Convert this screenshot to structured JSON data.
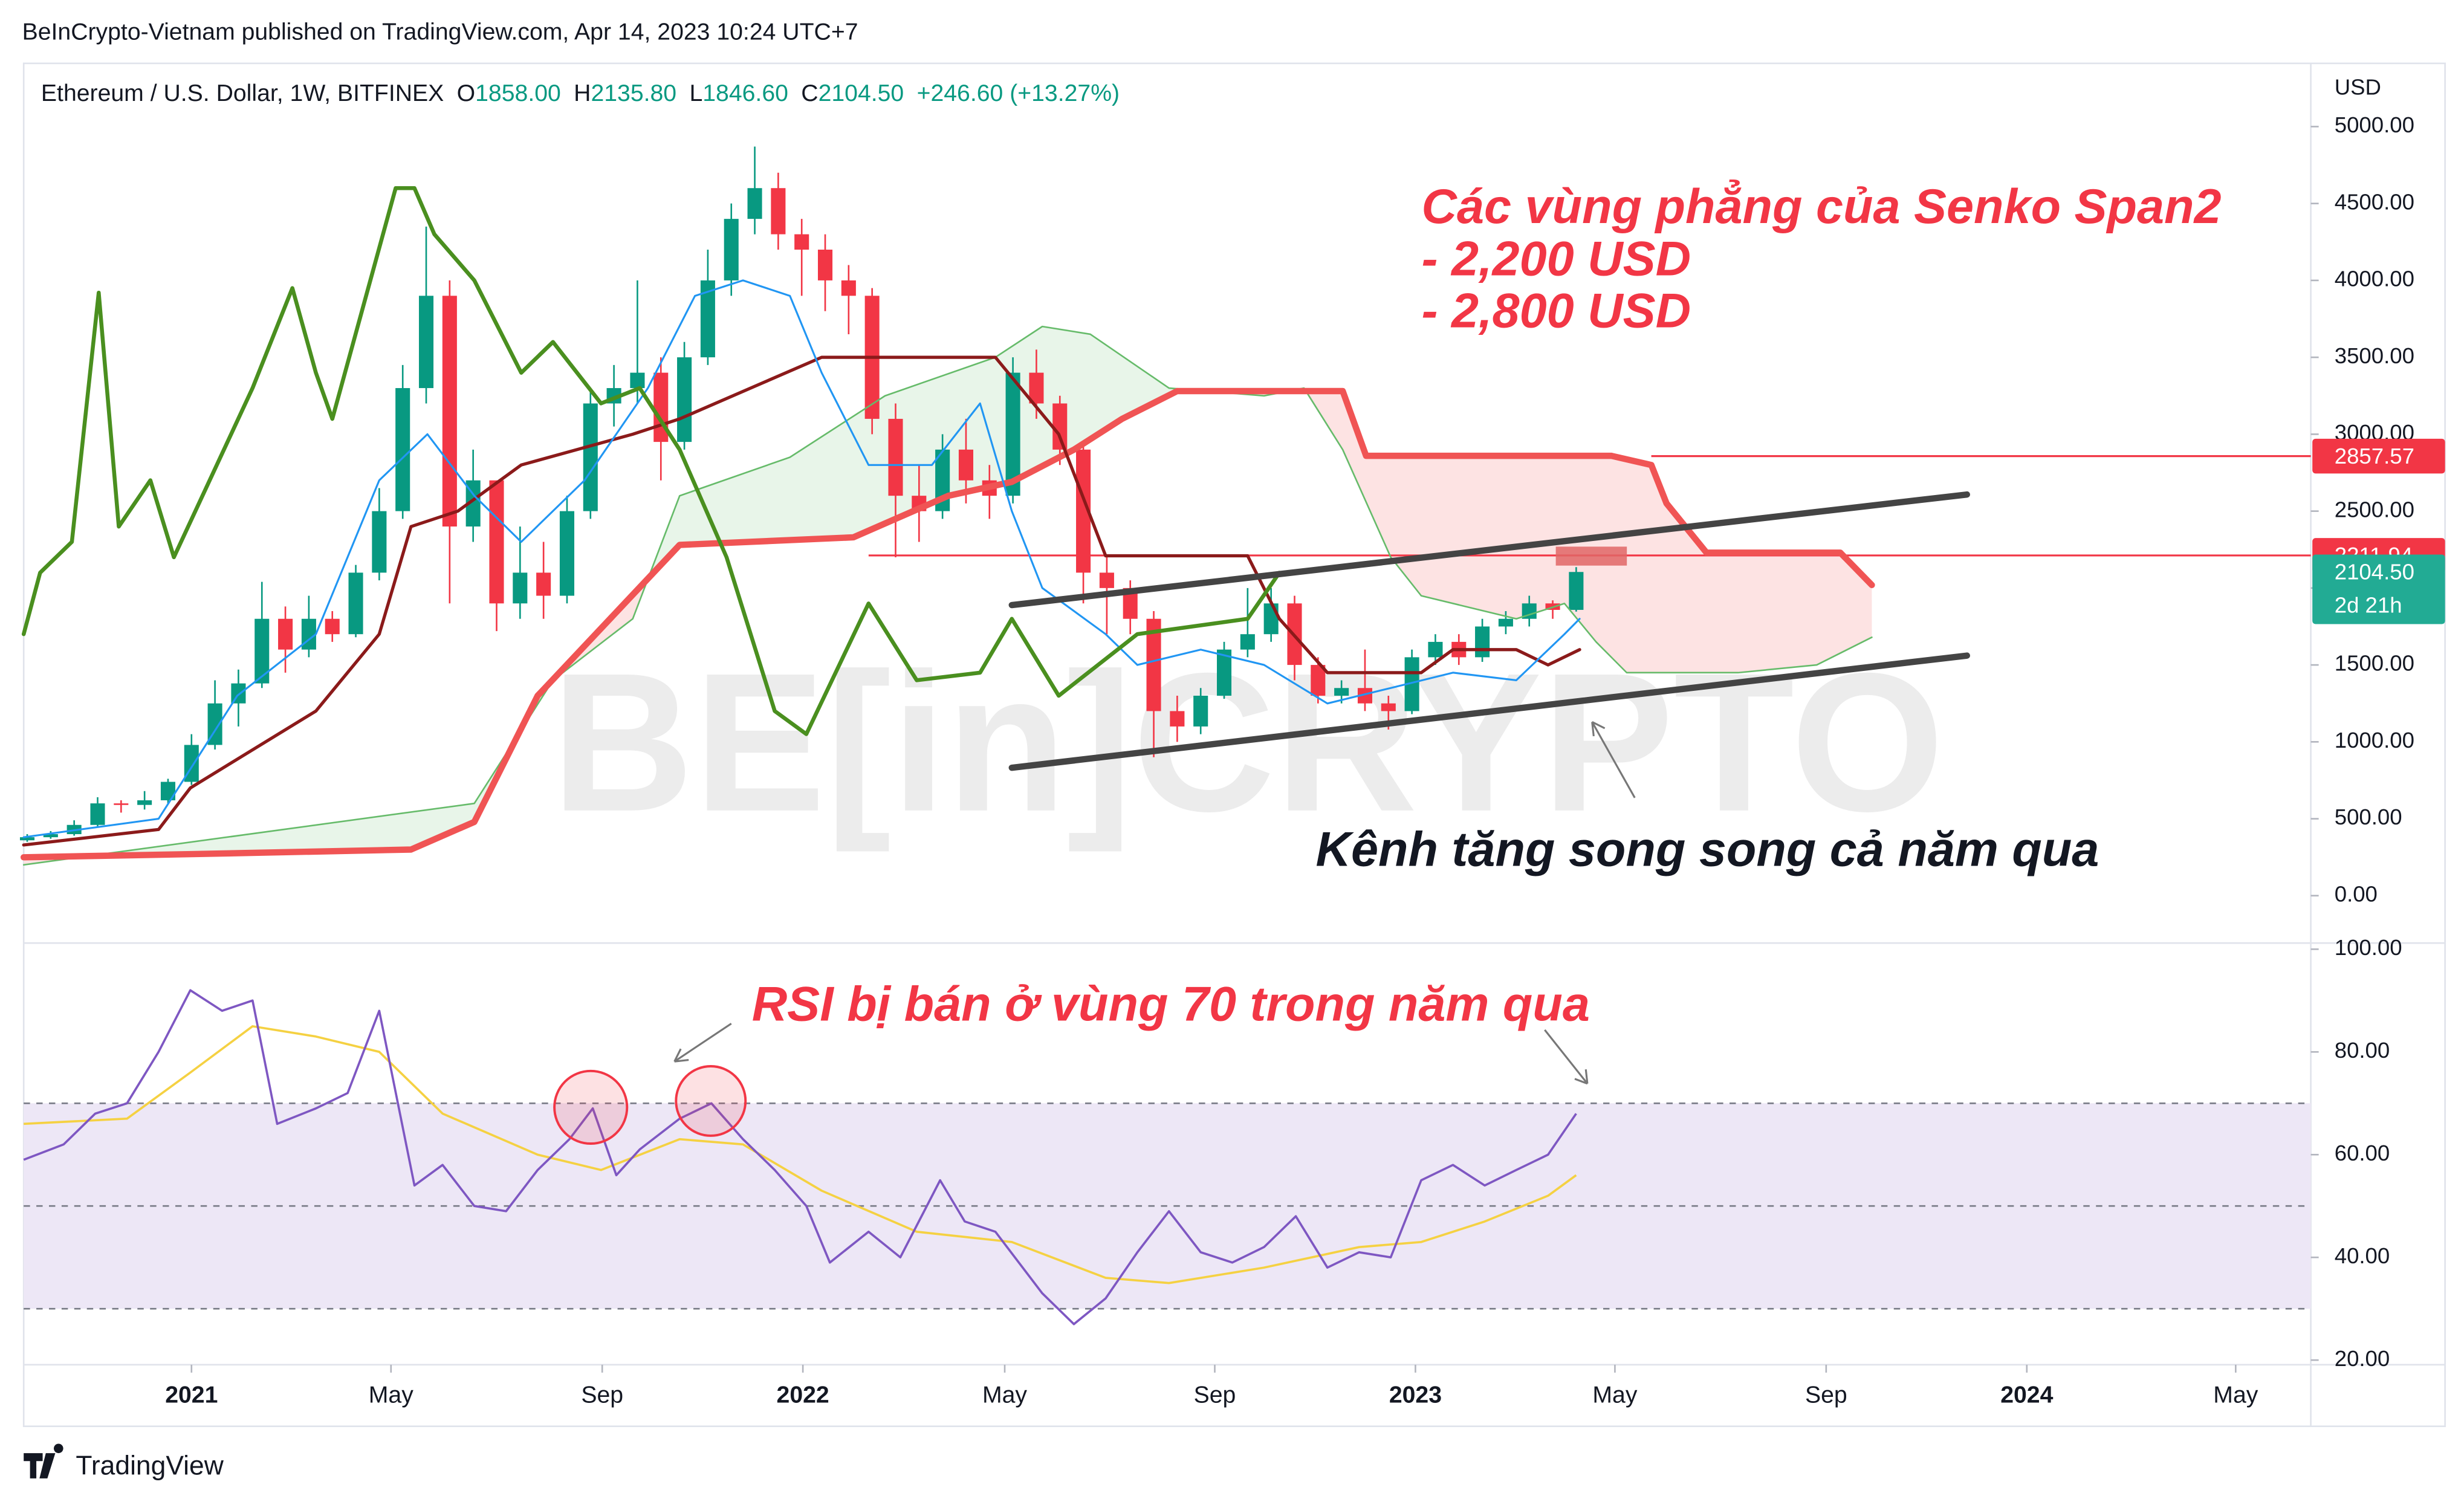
{
  "header": {
    "published": "BeInCrypto-Vietnam published on TradingView.com, Apr 14, 2023 10:24 UTC+7"
  },
  "footer": {
    "brand": "TradingView"
  },
  "chart_data": [
    {
      "type": "candlestick",
      "title": "Ethereum / U.S. Dollar, 1W, BITFINEX",
      "ohlc": [
        {
          "key": "O",
          "text": "1858.00"
        },
        {
          "key": "H",
          "text": "2135.80"
        },
        {
          "key": "L",
          "text": "1846.60"
        },
        {
          "key": "C",
          "text": "2104.50"
        }
      ],
      "change": "+246.60 (+13.27%)",
      "axis_unit": "USD",
      "watermark": "BE[in]CRYPTO",
      "annotations": {
        "senko": [
          "Các vùng phẳng của Senko Span2",
          "- 2,200 USD",
          "- 2,800 USD"
        ],
        "channel": "Kênh tăng song song cả năm qua"
      },
      "xlim": [
        -14.3,
        180.6
      ],
      "ylim": [
        -308,
        5411
      ],
      "yticks": [
        {
          "value": 0,
          "label": "0.00"
        },
        {
          "value": 500,
          "label": "500.00"
        },
        {
          "value": 1000,
          "label": "1000.00"
        },
        {
          "value": 1500,
          "label": "1500.00"
        },
        {
          "value": 2000,
          "label": "2000.00"
        },
        {
          "value": 2500,
          "label": "2500.00"
        },
        {
          "value": 3000,
          "label": "3000.00"
        },
        {
          "value": 3500,
          "label": "3500.00"
        },
        {
          "value": 4000,
          "label": "4000.00"
        },
        {
          "value": 4500,
          "label": "4500.00"
        },
        {
          "value": 5000,
          "label": "5000.00"
        }
      ],
      "grid": false,
      "up_color": "#089981",
      "down_color": "#f23645",
      "cloud_colors": [
        "#e8f5e9",
        "#fde3e3"
      ],
      "candles": {
        "x": [
          -14,
          -12,
          -10,
          -8,
          -6,
          -4,
          -2,
          0,
          2,
          4,
          6,
          8,
          10,
          12,
          14,
          16,
          18,
          20,
          22,
          24,
          26,
          28,
          30,
          32,
          34,
          36,
          38,
          40,
          42,
          44,
          46,
          48,
          50,
          52,
          54,
          56,
          58,
          60,
          62,
          64,
          66,
          68,
          70,
          72,
          74,
          76,
          78,
          80,
          82,
          84,
          86,
          88,
          90,
          92,
          94,
          96,
          98,
          100,
          102,
          104,
          106,
          108,
          110,
          112,
          114,
          116,
          118
        ],
        "open": [
          360,
          380,
          400,
          460,
          600,
          590,
          620,
          740,
          980,
          1250,
          1380,
          1800,
          1600,
          1800,
          1700,
          2100,
          2500,
          3300,
          3900,
          2400,
          2700,
          1900,
          2100,
          1950,
          2500,
          3200,
          3300,
          3400,
          2950,
          3500,
          4000,
          4400,
          4600,
          4300,
          4200,
          4000,
          3900,
          3100,
          2600,
          2500,
          2900,
          2700,
          2600,
          3400,
          3200,
          2900,
          2100,
          2000,
          1800,
          1200,
          1100,
          1300,
          1600,
          1700,
          1900,
          1500,
          1300,
          1350,
          1250,
          1200,
          1550,
          1650,
          1550,
          1750,
          1800,
          1900,
          1858
        ],
        "high": [
          400,
          420,
          490,
          640,
          620,
          680,
          760,
          1050,
          1400,
          1470,
          2040,
          1880,
          1950,
          1850,
          2150,
          2650,
          3450,
          4350,
          4000,
          2900,
          2700,
          2400,
          2300,
          2600,
          3300,
          3450,
          4000,
          3500,
          3600,
          4200,
          4500,
          4870,
          4700,
          4400,
          4300,
          4100,
          3950,
          3200,
          2800,
          3000,
          3100,
          2800,
          3500,
          3550,
          3250,
          2950,
          2200,
          2050,
          1850,
          1300,
          1350,
          1650,
          2000,
          2000,
          1950,
          1550,
          1400,
          1600,
          1300,
          1600,
          1700,
          1700,
          1800,
          1850,
          1950,
          1920,
          2135.8
        ],
        "low": [
          350,
          370,
          390,
          450,
          540,
          560,
          600,
          720,
          950,
          1100,
          1350,
          1450,
          1550,
          1650,
          1680,
          2050,
          2450,
          3200,
          1900,
          2300,
          1720,
          1800,
          1800,
          1900,
          2450,
          3050,
          3200,
          2700,
          2900,
          3450,
          3900,
          4300,
          4200,
          3900,
          3800,
          3650,
          3000,
          2200,
          2300,
          2450,
          2550,
          2450,
          2550,
          3100,
          2800,
          1900,
          1700,
          1700,
          900,
          1000,
          1050,
          1280,
          1550,
          1650,
          1400,
          1250,
          1250,
          1200,
          1080,
          1180,
          1500,
          1500,
          1520,
          1700,
          1750,
          1800,
          1846.6
        ],
        "close": [
          380,
          400,
          460,
          600,
          590,
          620,
          740,
          980,
          1250,
          1380,
          1800,
          1600,
          1800,
          1700,
          2100,
          2500,
          3300,
          3900,
          2400,
          2700,
          1900,
          2100,
          1950,
          2500,
          3200,
          3300,
          3400,
          2950,
          3500,
          4000,
          4400,
          4600,
          4300,
          4200,
          4000,
          3900,
          3100,
          2600,
          2500,
          2900,
          2700,
          2600,
          3400,
          3200,
          2900,
          2100,
          2000,
          1800,
          1200,
          1100,
          1300,
          1600,
          1700,
          1900,
          1500,
          1300,
          1350,
          1250,
          1200,
          1550,
          1650,
          1550,
          1750,
          1800,
          1900,
          1858,
          2104.5
        ]
      },
      "series": [
        {
          "color": "#66bb6a",
          "width": 1,
          "x": [
            -14.3,
            24.1,
            30.8,
            37.6,
            41.6,
            51,
            59.1,
            68.5,
            72.5,
            76.6,
            83.3,
            91.4,
            94.8,
            98.1,
            102.2,
            104.8,
            112.9,
            117,
            119.7,
            122.3,
            131.8,
            138.5,
            143.2
          ],
          "values": [
            200,
            600,
            1400,
            1800,
            2600,
            2850,
            3250,
            3500,
            3700,
            3650,
            3300,
            3250,
            3300,
            2900,
            2200,
            1950,
            1800,
            1900,
            1650,
            1450,
            1450,
            1500,
            1680
          ]
        },
        {
          "color": "#f05454",
          "width": 4,
          "x": [
            -14.3,
            0,
            18.7,
            24.1,
            29.5,
            41.6,
            56.4,
            64.5,
            69.9,
            75.2,
            79.3,
            84,
            98.1,
            100.1,
            121,
            124.4,
            125.7,
            129.1,
            140.5,
            143.2
          ],
          "values": [
            250,
            270,
            300,
            480,
            1300,
            2280,
            2330,
            2600,
            2690,
            2900,
            3100,
            3280,
            3280,
            2860,
            2860,
            2800,
            2550,
            2230,
            2230,
            2020
          ]
        },
        {
          "color": "#8b1a1a",
          "width": 2,
          "x": [
            -14.3,
            -2.8,
            -0.1,
            10.6,
            16,
            18.7,
            22.7,
            28.1,
            37.6,
            41.6,
            53.7,
            68.5,
            73.9,
            77.9,
            90,
            92.7,
            96.8,
            104.8,
            107.5,
            112.9,
            115.6,
            118.3
          ],
          "values": [
            330,
            430,
            700,
            1200,
            1700,
            2400,
            2500,
            2800,
            3000,
            3100,
            3500,
            3500,
            3000,
            2210,
            2210,
            1800,
            1450,
            1450,
            1600,
            1600,
            1500,
            1600
          ]
        },
        {
          "color": "#2196f3",
          "width": 1.2,
          "x": [
            -14.3,
            -2.8,
            3.9,
            10.6,
            16,
            20.1,
            24.1,
            28.1,
            33.5,
            38.9,
            42.9,
            47,
            51,
            53.7,
            57.7,
            63.1,
            67.2,
            69.9,
            72.5,
            77.9,
            80.6,
            86,
            91.4,
            96.8,
            102.2,
            107.5,
            112.9,
            117,
            118.3
          ],
          "values": [
            380,
            500,
            1300,
            1700,
            2700,
            3000,
            2600,
            2300,
            2700,
            3300,
            3900,
            4000,
            3900,
            3400,
            2800,
            2800,
            3200,
            2500,
            2000,
            1700,
            1500,
            1600,
            1500,
            1250,
            1350,
            1450,
            1400,
            1700,
            1800
          ]
        },
        {
          "color": "#4a8f1f",
          "width": 2.5,
          "x": [
            -14.3,
            -12.9,
            -10.2,
            -7.9,
            -6.2,
            -3.5,
            -1.5,
            5.2,
            8.6,
            10.6,
            12,
            17.4,
            19,
            20.7,
            24.1,
            28.1,
            30.8,
            34.9,
            38.2,
            41.6,
            45.6,
            49.7,
            52.4,
            57.7,
            61.8,
            67.2,
            69.9,
            73.9,
            80.6,
            90,
            92.7
          ],
          "values": [
            1700,
            2100,
            2300,
            3920,
            2400,
            2700,
            2200,
            3300,
            3950,
            3400,
            3100,
            4600,
            4600,
            4300,
            4000,
            3400,
            3600,
            3200,
            3300,
            2900,
            2200,
            1200,
            1050,
            1900,
            1400,
            1450,
            1800,
            1300,
            1700,
            1800,
            2100
          ]
        },
        {
          "color": "#444444",
          "width": 4,
          "x": [
            69.9,
            151.3
          ],
          "values": [
            1889,
            2608
          ]
        },
        {
          "color": "#444444",
          "width": 4,
          "x": [
            69.9,
            151.3
          ],
          "values": [
            832,
            1561
          ]
        }
      ],
      "levels": [
        {
          "value": 2857.57,
          "color": "#f23645",
          "x_start": 124.4
        },
        {
          "value": 2211.94,
          "color": "#f23645",
          "x_start": 57.7
        }
      ],
      "last_price": {
        "value": 2104.5,
        "label": "2104.50"
      },
      "countdown": "2d 21h",
      "last_color": "#22ab94"
    },
    {
      "type": "line",
      "annotation": "RSI bị bán ở vùng 70 trong năm qua",
      "xlim": [
        -14.3,
        180.6
      ],
      "ylim": [
        19.1,
        101.2
      ],
      "yticks": [
        {
          "value": 20,
          "label": "20.00"
        },
        {
          "value": 40,
          "label": "40.00"
        },
        {
          "value": 60,
          "label": "60.00"
        },
        {
          "value": 80,
          "label": "80.00"
        },
        {
          "value": 100,
          "label": "100.00"
        }
      ],
      "xticks": [
        {
          "value": 0,
          "label": "2021"
        },
        {
          "value": 17,
          "label": "May"
        },
        {
          "value": 35,
          "label": "Sep"
        },
        {
          "value": 52.1,
          "label": "2022"
        },
        {
          "value": 69.3,
          "label": "May"
        },
        {
          "value": 87.2,
          "label": "Sep"
        },
        {
          "value": 104.3,
          "label": "2023"
        },
        {
          "value": 121.3,
          "label": "May"
        },
        {
          "value": 139.3,
          "label": "Sep"
        },
        {
          "value": 156.4,
          "label": "2024"
        },
        {
          "value": 174.2,
          "label": "May"
        }
      ],
      "levels": [
        70,
        50,
        30
      ],
      "band_color": "#ede7f6",
      "series": [
        {
          "color": "#7e57c2",
          "x": [
            -14.3,
            -10.9,
            -8.2,
            -5.5,
            -2.8,
            -0.1,
            2.6,
            5.2,
            7.3,
            10.6,
            13.3,
            16,
            19,
            21.4,
            24.1,
            26.8,
            29.5,
            32.2,
            34.2,
            36.2,
            38.2,
            41.6,
            44.3,
            47,
            49.7,
            52.4,
            54.4,
            57.7,
            60.4,
            63.8,
            65.9,
            68.5,
            72.5,
            75.2,
            77.9,
            80.6,
            83.3,
            86,
            88.7,
            91.4,
            94.1,
            96.8,
            99.5,
            102.2,
            104.8,
            107.5,
            110.2,
            112.9,
            115.6,
            118
          ],
          "values": [
            59,
            62,
            68,
            70,
            80,
            92,
            88,
            90,
            66,
            69,
            72,
            88,
            54,
            58,
            50,
            49,
            57,
            63,
            69,
            56,
            61,
            67,
            70,
            63,
            57,
            50,
            39,
            45,
            40,
            55,
            47,
            45,
            33,
            27,
            32,
            41,
            49,
            41,
            39,
            42,
            48,
            38,
            41,
            40,
            55,
            58,
            54,
            57,
            60,
            68
          ]
        },
        {
          "color": "#f5d142",
          "x": [
            -14.3,
            -5.5,
            -0.1,
            5.2,
            10.6,
            16,
            21.4,
            29.5,
            34.9,
            41.6,
            47,
            53.7,
            61.8,
            69.9,
            77.9,
            83.3,
            91.4,
            99.5,
            104.8,
            110.2,
            115.6,
            118
          ],
          "values": [
            66,
            67,
            76,
            85,
            83,
            80,
            68,
            60,
            57,
            63,
            62,
            53,
            45,
            43,
            36,
            35,
            38,
            42,
            43,
            47,
            52,
            56
          ]
        }
      ]
    }
  ]
}
